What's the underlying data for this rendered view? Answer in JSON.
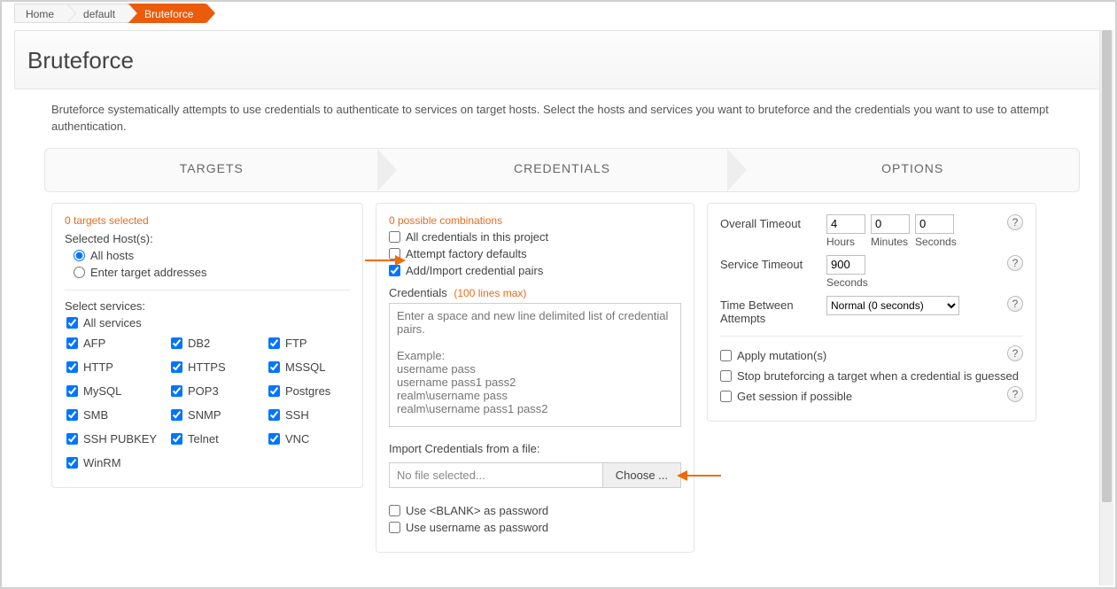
{
  "breadcrumb": {
    "items": [
      "Home",
      "default",
      "Bruteforce"
    ],
    "active_index": 2
  },
  "page_title": "Bruteforce",
  "description": "Bruteforce systematically attempts to use credentials to authenticate to services on target hosts. Select the hosts and services you want to bruteforce and the credentials you want to use to attempt authentication.",
  "wizard": {
    "steps": [
      "TARGETS",
      "CREDENTIALS",
      "OPTIONS"
    ]
  },
  "targets": {
    "selected_text": "0 targets selected",
    "host_label": "Selected Host(s):",
    "radios": {
      "all": "All hosts",
      "enter": "Enter target addresses",
      "selected": "all"
    },
    "services_label": "Select services:",
    "services": [
      {
        "label": "All services",
        "checked": true
      },
      {
        "label": "AFP",
        "checked": true
      },
      {
        "label": "DB2",
        "checked": true
      },
      {
        "label": "FTP",
        "checked": true
      },
      {
        "label": "HTTP",
        "checked": true
      },
      {
        "label": "HTTPS",
        "checked": true
      },
      {
        "label": "MSSQL",
        "checked": true
      },
      {
        "label": "MySQL",
        "checked": true
      },
      {
        "label": "POP3",
        "checked": true
      },
      {
        "label": "Postgres",
        "checked": true
      },
      {
        "label": "SMB",
        "checked": true
      },
      {
        "label": "SNMP",
        "checked": true
      },
      {
        "label": "SSH",
        "checked": true
      },
      {
        "label": "SSH PUBKEY",
        "checked": true
      },
      {
        "label": "Telnet",
        "checked": true
      },
      {
        "label": "VNC",
        "checked": true
      },
      {
        "label": "WinRM",
        "checked": true
      }
    ]
  },
  "credentials": {
    "combos_text": "0 possible combinations",
    "checks": [
      {
        "label": "All credentials in this project",
        "checked": false
      },
      {
        "label": "Attempt factory defaults",
        "checked": false
      },
      {
        "label": "Add/Import credential pairs",
        "checked": true
      }
    ],
    "cred_label": "Credentials",
    "cred_hint": "(100 lines max)",
    "textarea_placeholder": "Enter a space and new line delimited list of credential pairs.\n\nExample:\nusername pass\nusername pass1 pass2\nrealm\\username pass\nrealm\\username pass1 pass2",
    "import_label": "Import Credentials from a file:",
    "file_display": "No file selected...",
    "choose_label": "Choose ...",
    "extra_checks": [
      {
        "label": "Use <BLANK> as password",
        "checked": false
      },
      {
        "label": "Use username as password",
        "checked": false
      }
    ]
  },
  "options": {
    "overall_label": "Overall Timeout",
    "overall": {
      "hours": "4",
      "minutes": "0",
      "seconds": "0"
    },
    "overall_units": [
      "Hours",
      "Minutes",
      "Seconds"
    ],
    "service_label": "Service Timeout",
    "service_value": "900",
    "service_unit": "Seconds",
    "attempts_label": "Time Between Attempts",
    "attempts_value": "Normal (0 seconds)",
    "checks": [
      {
        "label": "Apply mutation(s)",
        "checked": false,
        "help": true
      },
      {
        "label": "Stop bruteforcing a target when a credential is guessed",
        "checked": false,
        "help": false
      },
      {
        "label": "Get session if possible",
        "checked": false,
        "help": true
      }
    ]
  },
  "colors": {
    "accent": "#eb5b0b",
    "orange_text": "#e86c1f",
    "arrow": "#ef6c00",
    "border": "#e5e5e5"
  }
}
